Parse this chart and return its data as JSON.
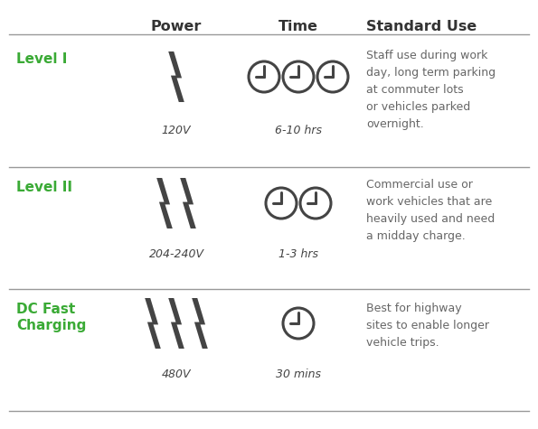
{
  "bg_color": "#ffffff",
  "header_color": "#333333",
  "green_color": "#3aaa35",
  "text_color": "#666666",
  "line_color": "#999999",
  "icon_color": "#444444",
  "headers": [
    "Power",
    "Time",
    "Standard Use"
  ],
  "rows": [
    {
      "label": "Level I",
      "label_line2": null,
      "bolt_count": 1,
      "clock_count": 3,
      "voltage": "120V",
      "time": "6-10 hrs",
      "description": "Staff use during work\nday, long term parking\nat commuter lots\nor vehicles parked\novernight."
    },
    {
      "label": "Level II",
      "label_line2": null,
      "bolt_count": 2,
      "clock_count": 2,
      "voltage": "204-240V",
      "time": "1-3 hrs",
      "description": "Commercial use or\nwork vehicles that are\nheavily used and need\na midday charge."
    },
    {
      "label": "DC Fast",
      "label_line2": "Charging",
      "bolt_count": 3,
      "clock_count": 1,
      "voltage": "480V",
      "time": "30 mins",
      "description": "Best for highway\nsites to enable longer\nvehicle trips."
    }
  ],
  "figsize": [
    5.95,
    4.75
  ],
  "dpi": 100
}
